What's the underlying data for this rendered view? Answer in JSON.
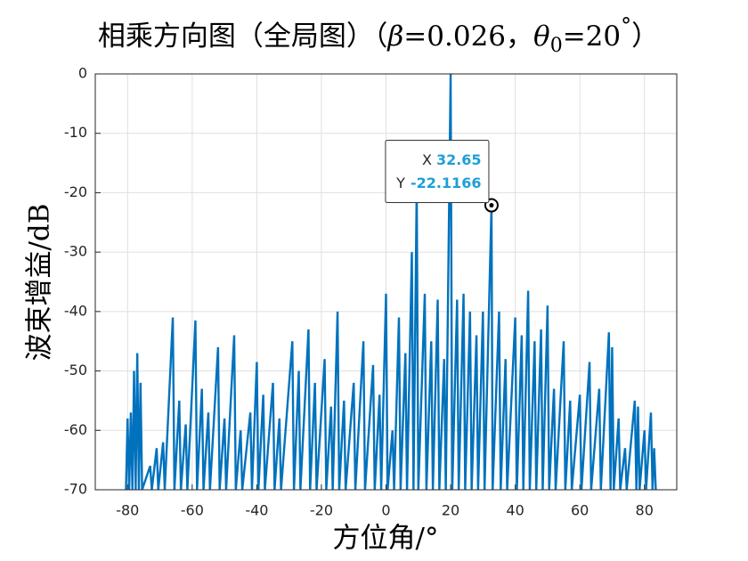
{
  "chart_data": {
    "type": "line",
    "title_parts": [
      "相乘方向图（全局图）（",
      "β",
      "=0.026，",
      "θ",
      "0",
      "=20",
      "°",
      "）"
    ],
    "x_label": "方位角/°",
    "y_label": "波束增益/dB",
    "xlim": [
      -90,
      90
    ],
    "ylim": [
      -70,
      0
    ],
    "xticks": [
      -80,
      -60,
      -40,
      -20,
      0,
      20,
      40,
      60,
      80
    ],
    "yticks": [
      0,
      -10,
      -20,
      -30,
      -40,
      -50,
      -60,
      -70
    ],
    "grid": true,
    "series": [
      {
        "color": "#0072bd",
        "x": [
          -80.5,
          -80,
          -79.5,
          -79,
          -78.5,
          -78,
          -77.5,
          -77,
          -76.5,
          -76,
          -75.5,
          -73,
          -72.5,
          -71,
          -70.5,
          -69,
          -68.5,
          -66,
          -65.5,
          -64,
          -63.5,
          -62,
          -61.5,
          -59,
          -58.5,
          -57,
          -56.5,
          -55,
          -54.5,
          -52,
          -51.5,
          -50,
          -49.5,
          -47,
          -46.5,
          -45,
          -44.5,
          -42,
          -41.5,
          -40,
          -39.5,
          -38,
          -37.5,
          -35,
          -34.5,
          -33,
          -32.5,
          -29,
          -28.5,
          -27,
          -26.5,
          -24,
          -23.5,
          -22,
          -21.5,
          -19,
          -18.5,
          -17,
          -16.5,
          -15,
          -14.5,
          -13,
          -12.5,
          -10,
          -9.5,
          -7,
          -6.5,
          -4,
          -3.5,
          -2,
          -1.5,
          0,
          0.5,
          2,
          2.5,
          4,
          4.5,
          6,
          6.5,
          8,
          8.5,
          9.5,
          10,
          12,
          12.5,
          14,
          14.5,
          16,
          16.5,
          18,
          18.5,
          20,
          20.5,
          22,
          22.5,
          24,
          24.5,
          26,
          26.5,
          28,
          28.5,
          30,
          30.5,
          32.65,
          33,
          35,
          35.5,
          37,
          37.5,
          40,
          40.5,
          42,
          42.5,
          44,
          44.5,
          46,
          46.5,
          48,
          48.5,
          50,
          50.5,
          52,
          52.5,
          55,
          55.5,
          57,
          57.5,
          60,
          60.5,
          63,
          63.5,
          66,
          66.5,
          69,
          69.5,
          70,
          70.5,
          72,
          72.5,
          74,
          74.5,
          77,
          77.5,
          78,
          78.5,
          80,
          80.5,
          82,
          82.5,
          83,
          83.5
        ],
        "values": [
          -70,
          -58,
          -70,
          -57,
          -70,
          -50,
          -70,
          -47,
          -70,
          -52,
          -70,
          -66,
          -70,
          -63,
          -70,
          -62,
          -70,
          -41,
          -70,
          -55,
          -70,
          -59,
          -70,
          -41.5,
          -70,
          -53,
          -70,
          -57,
          -70,
          -46,
          -70,
          -58,
          -70,
          -44,
          -70,
          -60,
          -70,
          -57,
          -70,
          -48.5,
          -70,
          -54,
          -70,
          -52,
          -70,
          -58,
          -70,
          -45,
          -70,
          -50,
          -70,
          -43,
          -70,
          -52,
          -70,
          -48,
          -70,
          -56,
          -70,
          -40,
          -70,
          -55,
          -70,
          -52,
          -70,
          -45,
          -70,
          -49,
          -70,
          -54,
          -70,
          -37,
          -70,
          -60,
          -70,
          -41,
          -70,
          -47,
          -70,
          -30,
          -70,
          -19,
          -70,
          -37,
          -70,
          -45,
          -70,
          -38,
          -70,
          -48,
          -70,
          0,
          -70,
          -38,
          -70,
          -37,
          -70,
          -40,
          -70,
          -44,
          -70,
          -40,
          -70,
          -22.1166,
          -70,
          -40,
          -70,
          -48,
          -70,
          -41,
          -70,
          -44,
          -70,
          -36.5,
          -70,
          -45,
          -70,
          -43,
          -70,
          -39,
          -70,
          -53,
          -70,
          -45,
          -70,
          -55,
          -70,
          -54,
          -70,
          -48.5,
          -70,
          -53,
          -70,
          -43.5,
          -70,
          -46,
          -70,
          -58,
          -70,
          -63,
          -70,
          -55,
          -70,
          -56,
          -70,
          -60,
          -70,
          -57,
          -70,
          -63,
          -70
        ]
      }
    ],
    "datatip": {
      "x_label": "X",
      "x": 32.65,
      "y_label": "Y",
      "y": -22.1166
    }
  }
}
